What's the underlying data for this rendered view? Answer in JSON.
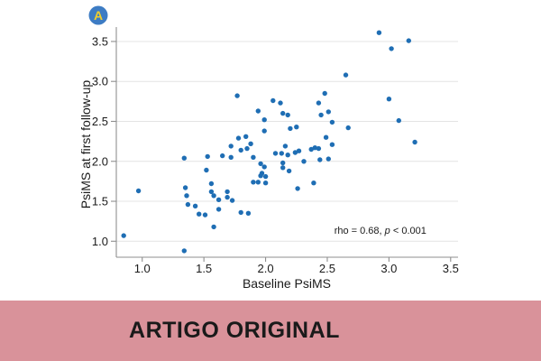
{
  "figure": {
    "panel_label": "A",
    "badge_color": "#3d7cc4",
    "badge_text_color": "#f2cf2a"
  },
  "chart_data": {
    "type": "scatter",
    "title": "",
    "xlabel": "Baseline PsiMS",
    "ylabel": "PsiMS at first follow-up",
    "xlim": [
      0.79,
      3.56
    ],
    "ylim": [
      0.8,
      3.68
    ],
    "xticks": [
      "1.0",
      "1.5",
      "2.0",
      "2.5",
      "3.0",
      "3.5"
    ],
    "yticks": [
      "1.0",
      "1.5",
      "2.0",
      "2.5",
      "3.0",
      "3.5"
    ],
    "grid": "horizontal-only",
    "legend": "none",
    "point_color": "#1f6eb4",
    "annotation": {
      "prefix": "rho = 0.68, ",
      "italic": "p",
      "suffix": " < 0.001",
      "x": 2.93,
      "y": 1.13
    },
    "points": [
      [
        0.85,
        1.07
      ],
      [
        0.97,
        1.63
      ],
      [
        1.34,
        0.88
      ],
      [
        1.34,
        2.04
      ],
      [
        1.35,
        1.67
      ],
      [
        1.36,
        1.57
      ],
      [
        1.37,
        1.46
      ],
      [
        1.43,
        1.44
      ],
      [
        1.46,
        1.34
      ],
      [
        1.51,
        1.33
      ],
      [
        1.52,
        1.89
      ],
      [
        1.53,
        2.06
      ],
      [
        1.56,
        1.72
      ],
      [
        1.56,
        1.62
      ],
      [
        1.58,
        1.57
      ],
      [
        1.58,
        1.18
      ],
      [
        1.62,
        1.52
      ],
      [
        1.62,
        1.4
      ],
      [
        1.65,
        2.07
      ],
      [
        1.69,
        1.62
      ],
      [
        1.69,
        1.55
      ],
      [
        1.72,
        2.19
      ],
      [
        1.72,
        2.05
      ],
      [
        1.73,
        1.51
      ],
      [
        1.77,
        2.82
      ],
      [
        1.78,
        2.29
      ],
      [
        1.8,
        2.14
      ],
      [
        1.8,
        1.36
      ],
      [
        1.84,
        2.31
      ],
      [
        1.85,
        2.16
      ],
      [
        1.86,
        1.35
      ],
      [
        1.88,
        2.22
      ],
      [
        1.9,
        2.05
      ],
      [
        1.9,
        1.74
      ],
      [
        1.94,
        1.74
      ],
      [
        1.94,
        2.63
      ],
      [
        1.96,
        1.97
      ],
      [
        1.96,
        1.82
      ],
      [
        1.97,
        1.85
      ],
      [
        1.99,
        1.93
      ],
      [
        1.99,
        2.52
      ],
      [
        1.99,
        2.38
      ],
      [
        2.0,
        1.81
      ],
      [
        2.0,
        1.73
      ],
      [
        2.06,
        2.76
      ],
      [
        2.08,
        2.1
      ],
      [
        2.12,
        2.73
      ],
      [
        2.13,
        2.1
      ],
      [
        2.14,
        1.98
      ],
      [
        2.14,
        1.92
      ],
      [
        2.14,
        2.6
      ],
      [
        2.16,
        2.19
      ],
      [
        2.18,
        2.58
      ],
      [
        2.18,
        2.08
      ],
      [
        2.19,
        1.88
      ],
      [
        2.2,
        2.41
      ],
      [
        2.24,
        2.11
      ],
      [
        2.25,
        2.43
      ],
      [
        2.26,
        1.66
      ],
      [
        2.27,
        2.13
      ],
      [
        2.31,
        2.0
      ],
      [
        2.37,
        2.15
      ],
      [
        2.39,
        1.73
      ],
      [
        2.4,
        2.17
      ],
      [
        2.43,
        2.16
      ],
      [
        2.43,
        2.73
      ],
      [
        2.44,
        2.02
      ],
      [
        2.45,
        2.58
      ],
      [
        2.48,
        2.85
      ],
      [
        2.49,
        2.3
      ],
      [
        2.51,
        2.62
      ],
      [
        2.51,
        2.03
      ],
      [
        2.54,
        2.49
      ],
      [
        2.54,
        2.21
      ],
      [
        2.65,
        3.08
      ],
      [
        2.67,
        2.42
      ],
      [
        2.92,
        3.61
      ],
      [
        3.0,
        2.78
      ],
      [
        3.02,
        3.41
      ],
      [
        3.08,
        2.51
      ],
      [
        3.16,
        3.51
      ],
      [
        3.21,
        2.24
      ]
    ]
  },
  "banner": {
    "text": "ARTIGO ORIGINAL",
    "bg_color": "#d9929a",
    "text_color": "#1a1a1a"
  }
}
